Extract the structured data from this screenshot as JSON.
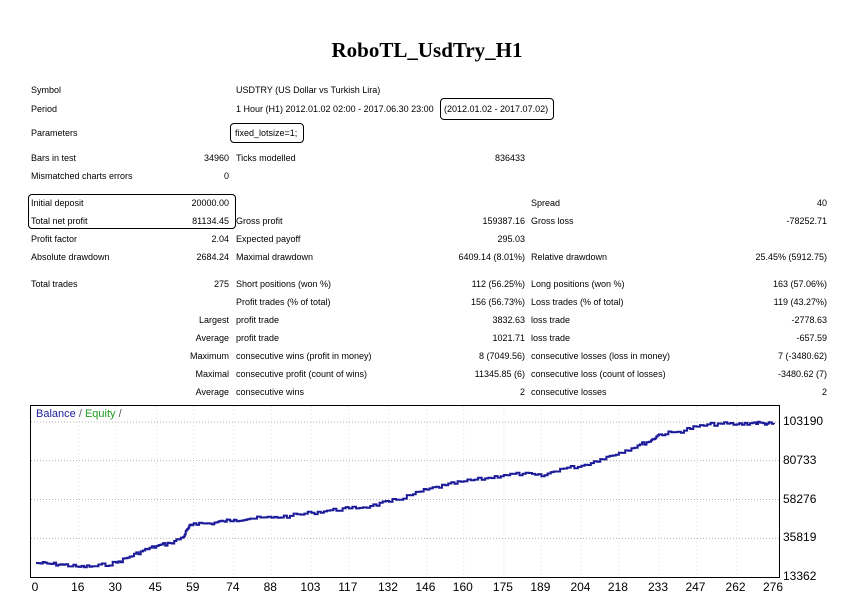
{
  "report": {
    "title": "RoboTL_UsdTry_H1",
    "symbol_label": "Symbol",
    "symbol_value": "USDTRY (US Dollar vs Turkish Lira)",
    "period_label": "Period",
    "period_value": "1 Hour (H1) 2012.01.02 02:00 - 2017.06.30 23:00",
    "period_range": "(2012.01.02 - 2017.07.02)",
    "parameters_label": "Parameters",
    "parameters_value": "fixed_lotsize=1;",
    "bars_label": "Bars in test",
    "bars_value": "34960",
    "ticks_label": "Ticks modelled",
    "ticks_value": "836433",
    "mismatched_label": "Mismatched charts errors",
    "mismatched_value": "0",
    "initial_deposit_label": "Initial deposit",
    "initial_deposit_value": "20000.00",
    "spread_label": "Spread",
    "spread_value": "40",
    "total_net_profit_label": "Total net profit",
    "total_net_profit_value": "81134.45",
    "gross_profit_label": "Gross profit",
    "gross_profit_value": "159387.16",
    "gross_loss_label": "Gross loss",
    "gross_loss_value": "-78252.71",
    "profit_factor_label": "Profit factor",
    "profit_factor_value": "2.04",
    "expected_payoff_label": "Expected payoff",
    "expected_payoff_value": "295.03",
    "absolute_drawdown_label": "Absolute drawdown",
    "absolute_drawdown_value": "2684.24",
    "maximal_drawdown_label": "Maximal drawdown",
    "maximal_drawdown_value": "6409.14 (8.01%)",
    "relative_drawdown_label": "Relative drawdown",
    "relative_drawdown_value": "25.45% (5912.75)",
    "total_trades_label": "Total trades",
    "total_trades_value": "275",
    "short_positions_label": "Short positions (won %)",
    "short_positions_value": "112 (56.25%)",
    "long_positions_label": "Long positions (won %)",
    "long_positions_value": "163 (57.06%)",
    "profit_trades_label": "Profit trades (% of total)",
    "profit_trades_value": "156 (56.73%)",
    "loss_trades_label": "Loss trades (% of total)",
    "loss_trades_value": "119 (43.27%)",
    "largest_label": "Largest",
    "largest_profit_label": "profit trade",
    "largest_profit_value": "3832.63",
    "largest_loss_label": "loss trade",
    "largest_loss_value": "-2778.63",
    "average_label": "Average",
    "average_profit_label": "profit trade",
    "average_profit_value": "1021.71",
    "average_loss_label": "loss trade",
    "average_loss_value": "-657.59",
    "maximum_label": "Maximum",
    "max_cons_wins_label": "consecutive wins (profit in money)",
    "max_cons_wins_value": "8 (7049.56)",
    "max_cons_losses_label": "consecutive losses (loss in money)",
    "max_cons_losses_value": "7 (-3480.62)",
    "maximal_label": "Maximal",
    "maximal_cons_profit_label": "consecutive profit (count of wins)",
    "maximal_cons_profit_value": "11345.85 (6)",
    "maximal_cons_loss_label": "consecutive loss (count of losses)",
    "maximal_cons_loss_value": "-3480.62 (7)",
    "average2_label": "Average",
    "avg_cons_wins_label": "consecutive wins",
    "avg_cons_wins_value": "2",
    "avg_cons_losses_label": "consecutive losses",
    "avg_cons_losses_value": "2"
  },
  "chart_data": {
    "type": "line",
    "legend": {
      "balance": "Balance",
      "sep1": " / ",
      "equity": "Equity",
      "sep2": " /"
    },
    "colors": {
      "balance": "#1b1b9a",
      "equity": "#1f9a1f"
    },
    "y_ticks": [
      "103190",
      "80733",
      "58276",
      "35819",
      "13362"
    ],
    "y_tick_values": [
      103190,
      80733,
      58276,
      35819,
      13362
    ],
    "x_ticks": [
      "0",
      "16",
      "30",
      "45",
      "59",
      "74",
      "88",
      "103",
      "117",
      "132",
      "146",
      "160",
      "175",
      "189",
      "204",
      "218",
      "233",
      "247",
      "262",
      "276"
    ],
    "xlim": [
      0,
      276
    ],
    "ylim": [
      13362,
      103190
    ],
    "grid": true,
    "series": [
      {
        "name": "Balance",
        "x": [
          0,
          5,
          10,
          16,
          22,
          30,
          35,
          40,
          45,
          50,
          55,
          57,
          59,
          65,
          70,
          74,
          80,
          88,
          95,
          103,
          110,
          117,
          125,
          132,
          140,
          146,
          153,
          160,
          168,
          175,
          182,
          189,
          196,
          204,
          211,
          218,
          225,
          230,
          233,
          240,
          247,
          255,
          262,
          268,
          272,
          276
        ],
        "y": [
          21500,
          21000,
          20500,
          19200,
          19600,
          21700,
          25200,
          28700,
          31300,
          33000,
          36500,
          42000,
          44500,
          44300,
          45700,
          46500,
          47200,
          47800,
          48800,
          50600,
          52000,
          53100,
          54500,
          57000,
          60700,
          64000,
          66500,
          68800,
          70500,
          72500,
          73200,
          71800,
          76000,
          77800,
          81700,
          85400,
          89600,
          92500,
          96000,
          97500,
          100500,
          102300,
          101800,
          102800,
          102500,
          102000
        ]
      }
    ]
  }
}
